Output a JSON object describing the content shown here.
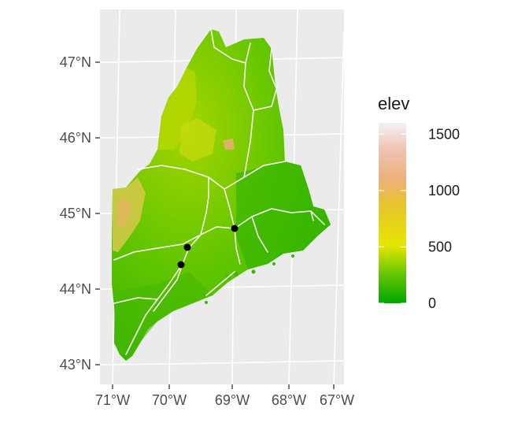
{
  "map": {
    "panel_background": "#ebebeb",
    "lat_labels": [
      "47°N",
      "46°N",
      "45°N",
      "44°N",
      "43°N"
    ],
    "lon_labels": [
      "71°W",
      "70°W",
      "69°W",
      "68°W",
      "67°W"
    ]
  },
  "legend": {
    "title": "elev",
    "labels": [
      "1500",
      "1000",
      "500",
      "0"
    ],
    "values": [
      1500,
      1000,
      500,
      0
    ],
    "range": [
      0,
      1600
    ],
    "colors": [
      "#00a600",
      "#63c600",
      "#e6e600",
      "#e8c32e",
      "#ecb176",
      "#efc2b3",
      "#f2f2f2"
    ]
  },
  "points": {
    "color": "#000000",
    "count": 3
  }
}
